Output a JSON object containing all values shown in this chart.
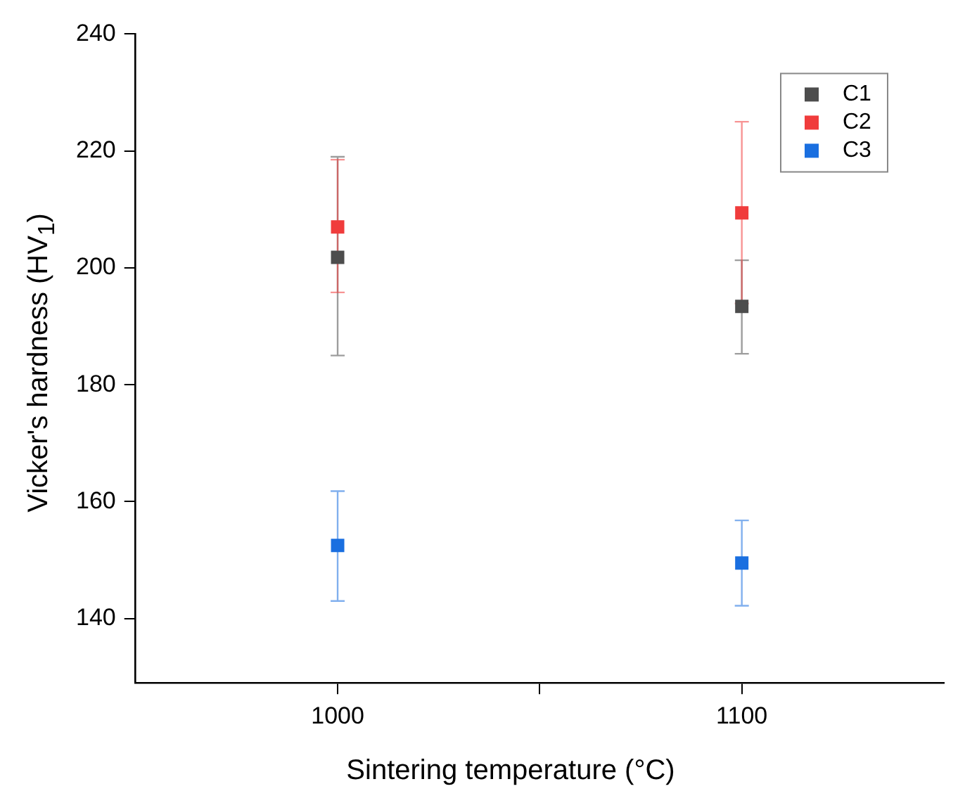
{
  "chart_data": {
    "type": "scatter",
    "xlabel": "Sintering temperature (°C)",
    "ylabel": "Vicker's hardness (HV$_{1}$)",
    "x": [
      1000,
      1100
    ],
    "series": [
      {
        "name": "C1",
        "color": "#4d4d4d",
        "values": [
          201.8,
          193.4
        ],
        "errors": [
          [
            185,
            219
          ],
          [
            185.3,
            201.3
          ]
        ]
      },
      {
        "name": "C2",
        "color": "#f03c3c",
        "values": [
          207,
          209.4
        ],
        "errors": [
          [
            195.8,
            218.5
          ],
          [
            193.9,
            225
          ]
        ]
      },
      {
        "name": "C3",
        "color": "#1a6fe0",
        "values": [
          152.5,
          149.5
        ],
        "errors": [
          [
            143,
            161.8
          ],
          [
            142.2,
            156.8
          ]
        ]
      }
    ],
    "xlim": [
      950,
      1150
    ],
    "xticks": [
      1000,
      {
        "value": 1050,
        "label": null
      },
      1100
    ],
    "ylim": [
      129,
      240
    ],
    "yticks": [
      140,
      160,
      180,
      200,
      220,
      240
    ],
    "grid": false,
    "legend": "top right",
    "marker": "square"
  }
}
